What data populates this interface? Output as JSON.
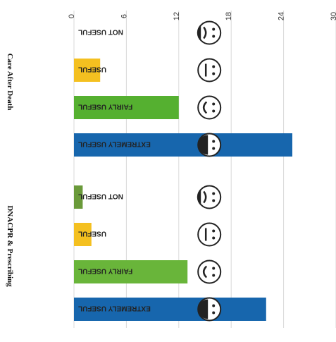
{
  "chart_data": {
    "type": "bar",
    "orientation": "horizontal",
    "x_ticks": [
      0,
      6,
      12,
      18,
      24,
      30
    ],
    "xlim": [
      0,
      30
    ],
    "grid": true,
    "groups": [
      {
        "name": "DNACPR & Prescribing",
        "bars": [
          {
            "label": "EXTREMELY USEFUL",
            "value": 22,
            "color": "#1766ad"
          },
          {
            "label": "FAIRLY USEFUL",
            "value": 13,
            "color": "#69b53a"
          },
          {
            "label": "USEFUL",
            "value": 2,
            "color": "#f4c020"
          },
          {
            "label": "NOT USEFUL",
            "value": 1,
            "color": "#6a9a3a"
          }
        ]
      },
      {
        "name": "Care After Death",
        "bars": [
          {
            "label": "EXTREMELY USEFUL",
            "value": 25,
            "color": "#1766ad"
          },
          {
            "label": "FAIRLY USEFUL",
            "value": 12,
            "color": "#55b030"
          },
          {
            "label": "USEFUL",
            "value": 3,
            "color": "#f4c020"
          },
          {
            "label": "NOT USEFUL",
            "value": 0,
            "color": "#6a9a3a"
          }
        ]
      }
    ],
    "face_icons": [
      "very-happy-face-icon",
      "happy-face-icon",
      "neutral-face-icon",
      "sad-face-icon"
    ]
  }
}
